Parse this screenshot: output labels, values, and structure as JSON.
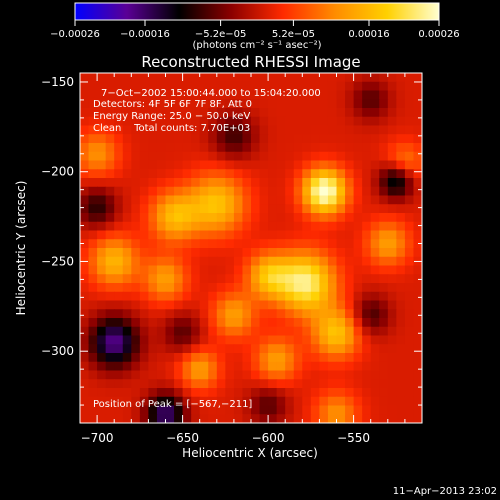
{
  "chart_data": {
    "type": "heatmap",
    "title": "Reconstructed RHESSI Image",
    "xlabel": "Heliocentric X (arcsec)",
    "ylabel": "Heliocentric Y (arcsec)",
    "xlim": [
      -710,
      -510
    ],
    "ylim": [
      -340,
      -145
    ],
    "x_ticks": [
      -700,
      -650,
      -600,
      -550
    ],
    "x_tick_labels": [
      "−700",
      "−650",
      "−600",
      "−550"
    ],
    "y_ticks": [
      -150,
      -200,
      -250,
      -300
    ],
    "y_tick_labels": [
      "−150",
      "−200",
      "−250",
      "−300"
    ],
    "colorbar": {
      "min": -0.00026,
      "max": 0.00026,
      "ticks": [
        -0.00026,
        -0.00016,
        -5.2e-05,
        5.2e-05,
        0.00016,
        0.00026
      ],
      "tick_labels": [
        "−0.00026",
        "−0.00016",
        "−5.2e−05",
        "5.2e−05",
        "0.00016",
        "0.00026"
      ],
      "units_label": "(photons cm⁻² s⁻¹ asec⁻²)",
      "colors": [
        "#0000ff",
        "#5a0095",
        "#000000",
        "#8b0000",
        "#ff2a00",
        "#ff8c00",
        "#ffd000",
        "#ffffd0"
      ]
    },
    "annotations": [
      "7−Oct−2002 15:00:44.000 to 15:04:20.000",
      "Detectors: 4F 5F 6F 7F 8F, Att 0",
      "Energy Range: 25.0 − 50.0 keV",
      "Clean    Total counts: 7.70E+03"
    ],
    "peak_label": "Position of Peak = [−567,−211]",
    "peak": [
      -567,
      -211
    ],
    "sources": [
      {
        "x": -567,
        "y": -211,
        "amp": 1.0,
        "sigma": 9
      },
      {
        "x": -578,
        "y": -262,
        "amp": 0.85,
        "sigma": 12
      },
      {
        "x": -600,
        "y": -258,
        "amp": 0.55,
        "sigma": 9
      },
      {
        "x": -560,
        "y": -290,
        "amp": 0.6,
        "sigma": 10
      },
      {
        "x": -630,
        "y": -218,
        "amp": 0.6,
        "sigma": 12
      },
      {
        "x": -655,
        "y": -225,
        "amp": 0.55,
        "sigma": 10
      },
      {
        "x": -690,
        "y": -250,
        "amp": 0.55,
        "sigma": 10
      },
      {
        "x": -660,
        "y": -260,
        "amp": 0.45,
        "sigma": 9
      },
      {
        "x": -620,
        "y": -280,
        "amp": 0.45,
        "sigma": 9
      },
      {
        "x": -640,
        "y": -310,
        "amp": 0.45,
        "sigma": 8
      },
      {
        "x": -595,
        "y": -305,
        "amp": 0.45,
        "sigma": 9
      },
      {
        "x": -560,
        "y": -335,
        "amp": 0.4,
        "sigma": 9
      },
      {
        "x": -530,
        "y": -240,
        "amp": 0.45,
        "sigma": 9
      },
      {
        "x": -520,
        "y": -195,
        "amp": 0.35,
        "sigma": 8
      },
      {
        "x": -700,
        "y": -190,
        "amp": 0.4,
        "sigma": 9
      },
      {
        "x": -690,
        "y": -295,
        "amp": -0.75,
        "sigma": 10
      },
      {
        "x": -660,
        "y": -335,
        "amp": -0.7,
        "sigma": 8
      },
      {
        "x": -525,
        "y": -205,
        "amp": -0.6,
        "sigma": 7
      },
      {
        "x": -700,
        "y": -220,
        "amp": -0.4,
        "sigma": 8
      },
      {
        "x": -620,
        "y": -180,
        "amp": -0.35,
        "sigma": 9
      },
      {
        "x": -540,
        "y": -280,
        "amp": -0.35,
        "sigma": 8
      },
      {
        "x": -650,
        "y": -290,
        "amp": -0.3,
        "sigma": 8
      },
      {
        "x": -540,
        "y": -160,
        "amp": -0.3,
        "sigma": 8
      },
      {
        "x": -600,
        "y": -330,
        "amp": -0.3,
        "sigma": 8
      }
    ]
  },
  "footer": {
    "timestamp": "11−Apr−2013 23:02"
  }
}
